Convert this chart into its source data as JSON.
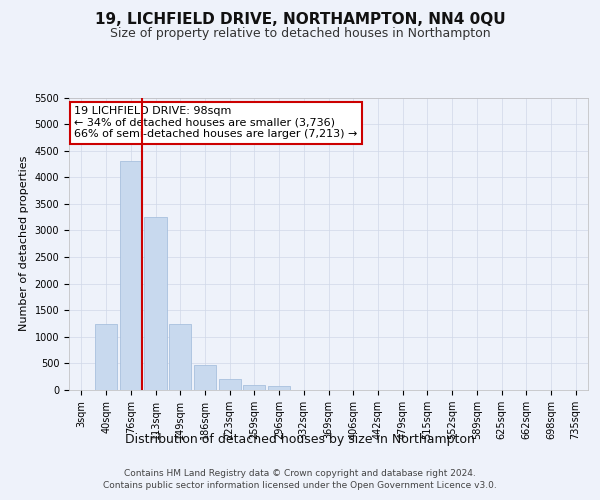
{
  "title": "19, LICHFIELD DRIVE, NORTHAMPTON, NN4 0QU",
  "subtitle": "Size of property relative to detached houses in Northampton",
  "xlabel": "Distribution of detached houses by size in Northampton",
  "ylabel": "Number of detached properties",
  "categories": [
    "3sqm",
    "40sqm",
    "76sqm",
    "113sqm",
    "149sqm",
    "186sqm",
    "223sqm",
    "259sqm",
    "296sqm",
    "332sqm",
    "369sqm",
    "406sqm",
    "442sqm",
    "479sqm",
    "515sqm",
    "552sqm",
    "589sqm",
    "625sqm",
    "662sqm",
    "698sqm",
    "735sqm"
  ],
  "values": [
    0,
    1250,
    4300,
    3250,
    1250,
    475,
    200,
    100,
    75,
    0,
    0,
    0,
    0,
    0,
    0,
    0,
    0,
    0,
    0,
    0,
    0
  ],
  "bar_color": "#c8d9ee",
  "bar_edge_color": "#a8c0de",
  "grid_color": "#d0d8e8",
  "red_line_x": 2.45,
  "annotation_text": "19 LICHFIELD DRIVE: 98sqm\n← 34% of detached houses are smaller (3,736)\n66% of semi-detached houses are larger (7,213) →",
  "annotation_box_color": "#ffffff",
  "annotation_box_edge_color": "#cc0000",
  "ylim": [
    0,
    5500
  ],
  "yticks": [
    0,
    500,
    1000,
    1500,
    2000,
    2500,
    3000,
    3500,
    4000,
    4500,
    5000,
    5500
  ],
  "footer": "Contains HM Land Registry data © Crown copyright and database right 2024.\nContains public sector information licensed under the Open Government Licence v3.0.",
  "bg_color": "#eef2fa",
  "plot_bg_color": "#eef2fa",
  "title_fontsize": 11,
  "subtitle_fontsize": 9,
  "tick_fontsize": 7,
  "ylabel_fontsize": 8,
  "xlabel_fontsize": 9,
  "annotation_fontsize": 8,
  "footer_fontsize": 6.5
}
